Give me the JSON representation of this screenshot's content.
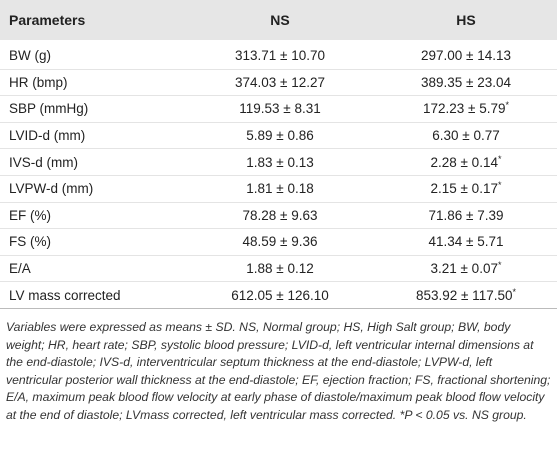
{
  "table": {
    "header": [
      "Parameters",
      "NS",
      "HS"
    ],
    "rows": [
      [
        {
          "text": "BW (g)"
        },
        {
          "text": "313.71 ± 10.70"
        },
        {
          "text": "297.00 ± 14.13"
        }
      ],
      [
        {
          "text": "HR (bmp)"
        },
        {
          "text": "374.03 ± 12.27"
        },
        {
          "text": "389.35 ± 23.04"
        }
      ],
      [
        {
          "text": "SBP (mmHg)"
        },
        {
          "text": "119.53 ± 8.31"
        },
        {
          "text": "172.23 ± 5.79",
          "note": "*"
        }
      ],
      [
        {
          "text": "LVID-d (mm)"
        },
        {
          "text": "5.89 ± 0.86"
        },
        {
          "text": "6.30 ± 0.77"
        }
      ],
      [
        {
          "text": "IVS-d (mm)"
        },
        {
          "text": "1.83 ± 0.13"
        },
        {
          "text": "2.28 ± 0.14",
          "note": "*"
        }
      ],
      [
        {
          "text": "LVPW-d (mm)"
        },
        {
          "text": "1.81 ± 0.18"
        },
        {
          "text": "2.15 ± 0.17",
          "note": "*"
        }
      ],
      [
        {
          "text": "EF (%)"
        },
        {
          "text": "78.28 ± 9.63"
        },
        {
          "text": "71.86 ± 7.39"
        }
      ],
      [
        {
          "text": "FS (%)"
        },
        {
          "text": "48.59 ± 9.36"
        },
        {
          "text": "41.34 ± 5.71"
        }
      ],
      [
        {
          "text": "E/A"
        },
        {
          "text": "1.88 ± 0.12"
        },
        {
          "text": "3.21 ± 0.07",
          "note": "*"
        }
      ],
      [
        {
          "text": "LV mass corrected"
        },
        {
          "text": "612.05 ± 126.10"
        },
        {
          "text": "853.92 ± 117.50",
          "note": "*"
        }
      ]
    ],
    "footnote": "Variables were expressed as means ± SD. NS, Normal group; HS, High Salt group; BW, body weight; HR, heart rate; SBP, systolic blood pressure; LVID-d, left ventricular internal dimensions at the end-diastole; IVS-d, interventricular septum thickness at the end-diastole; LVPW-d, left ventricular posterior wall thickness at the end-diastole; EF, ejection fraction; FS, fractional shortening; E/A, maximum peak blood flow velocity at early phase of diastole/maximum peak blood flow velocity at the end of diastole; LVmass corrected, left ventricular mass corrected. *P < 0.05 vs. NS group."
  }
}
